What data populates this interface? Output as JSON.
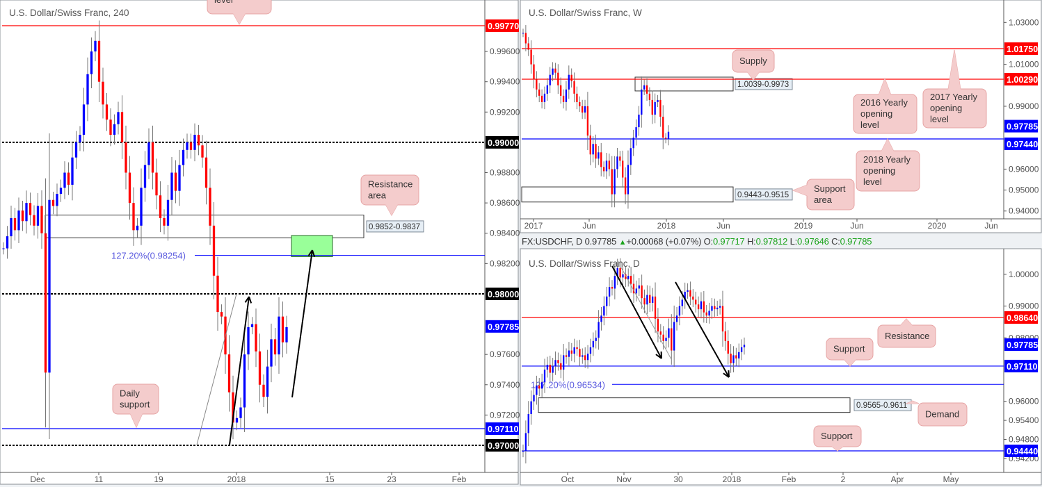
{
  "colors": {
    "up": "#0000ff",
    "down": "#ff0000",
    "resistance": "#ff0000",
    "support": "#0000ff",
    "round_number": "#000000",
    "fib": "#5b5bdf",
    "target_zone": "#99ff99",
    "callout_fill": "#f4cccc",
    "callout_border": "#e6a3a3"
  },
  "daily_header": {
    "symbol": "FX:USDCHF, D",
    "last": "0.97785",
    "arrow": "▲",
    "change": "+0.00068 (+0.07%)",
    "o_label": "O:",
    "o": "0.97717",
    "h_label": "H:",
    "h": "0.97812",
    "l_label": "L:",
    "l": "0.97646",
    "c_label": "C:",
    "c": "0.97785"
  },
  "chart_data": [
    {
      "id": "h4",
      "type": "candlestick",
      "title": "U.S. Dollar/Swiss Franc, 240",
      "closes": [
        0.983,
        0.9838,
        0.985,
        0.9842,
        0.9855,
        0.9848,
        0.986,
        0.9852,
        0.9845,
        0.9858,
        0.984,
        0.9748,
        0.9862,
        0.9858,
        0.9866,
        0.987,
        0.988,
        0.9872,
        0.989,
        0.99,
        0.9905,
        0.9925,
        0.9945,
        0.996,
        0.9967,
        0.994,
        0.9925,
        0.9915,
        0.9905,
        0.9912,
        0.992,
        0.99,
        0.988,
        0.986,
        0.9842,
        0.9845,
        0.987,
        0.9885,
        0.99,
        0.988,
        0.9865,
        0.985,
        0.9845,
        0.9862,
        0.988,
        0.9868,
        0.9885,
        0.9895,
        0.99,
        0.9895,
        0.9905,
        0.9898,
        0.989,
        0.987,
        0.9845,
        0.9812,
        0.9788,
        0.9785,
        0.976,
        0.9735,
        0.9715,
        0.9718,
        0.9725,
        0.976,
        0.9778,
        0.978,
        0.9762,
        0.974,
        0.9732,
        0.9752,
        0.977,
        0.976,
        0.9785,
        0.9768,
        0.9778
      ],
      "x_ticks": [
        "Dec",
        "11",
        "19",
        "2018",
        "15",
        "23",
        "Feb"
      ],
      "y_ticks": [
        "0.99600",
        "0.99400",
        "0.99200",
        "0.98800",
        "0.98600",
        "0.98400",
        "0.98200",
        "0.97600",
        "0.97400",
        "0.97200"
      ],
      "y_tick_values": [
        0.996,
        0.994,
        0.992,
        0.988,
        0.986,
        0.984,
        0.982,
        0.976,
        0.974,
        0.972
      ],
      "levels": [
        {
          "value": 0.9977,
          "label": "0.99770",
          "color": "#ff0000",
          "style": "solid"
        },
        {
          "value": 0.99,
          "label": "0.99000",
          "color": "#000000",
          "style": "dotted"
        },
        {
          "value": 0.98,
          "label": "0.98000",
          "color": "#000000",
          "style": "dotted"
        },
        {
          "value": 0.9711,
          "label": "0.97110",
          "color": "#0000ff",
          "style": "solid"
        },
        {
          "value": 0.97,
          "label": "0.97000",
          "color": "#000000",
          "style": "dotted"
        }
      ],
      "current_price": {
        "value": 0.97785,
        "label": "0.97785"
      },
      "fib": {
        "value": 0.98254,
        "label": "127.20%(0.98254)"
      },
      "zones": [
        {
          "high": 0.9852,
          "low": 0.9837,
          "label": "0.9852-0.9837"
        }
      ],
      "target_zone": {
        "high": 0.98385,
        "low": 0.98245
      },
      "callouts": [
        {
          "lines": [
            "level"
          ]
        },
        {
          "lines": [
            "Resistance",
            "area"
          ]
        },
        {
          "lines": [
            "Daily",
            "support"
          ]
        }
      ]
    },
    {
      "id": "weekly",
      "type": "candlestick",
      "title": "U.S. Dollar/Swiss Franc, W",
      "closes": [
        1.025,
        1.02,
        1.017,
        1.01,
        1.003,
        0.998,
        0.995,
        0.992,
        0.996,
        1.0,
        1.005,
        1.008,
        1.006,
        1.0,
        0.995,
        0.992,
        0.998,
        1.005,
        1.002,
        0.996,
        0.992,
        0.99,
        0.987,
        0.99,
        0.976,
        0.967,
        0.972,
        0.965,
        0.968,
        0.961,
        0.959,
        0.964,
        0.96,
        0.948,
        0.96,
        0.966,
        0.964,
        0.956,
        0.948,
        0.962,
        0.97,
        0.975,
        0.98,
        0.986,
        0.998,
        1.0,
        0.996,
        0.993,
        0.986,
        0.992,
        0.993,
        0.985,
        0.975,
        0.9745,
        0.9778
      ],
      "x_ticks": [
        "2017",
        "Jun",
        "2018",
        "Jun",
        "2019",
        "Jun",
        "2020",
        "Jun"
      ],
      "y_ticks": [
        "1.03000",
        "1.01000",
        "0.99000",
        "0.96000",
        "0.95000",
        "0.94000"
      ],
      "y_tick_values": [
        1.03,
        1.01,
        0.99,
        0.96,
        0.95,
        0.94
      ],
      "levels": [
        {
          "value": 1.0175,
          "label": "1.01750",
          "color": "#ff0000",
          "style": "solid"
        },
        {
          "value": 1.0029,
          "label": "1.00290",
          "color": "#ff0000",
          "style": "solid"
        },
        {
          "value": 0.9744,
          "label": "0.97440",
          "color": "#0000ff",
          "style": "solid"
        }
      ],
      "current_price": {
        "value": 0.97785,
        "label": "0.97785"
      },
      "zones": [
        {
          "high": 1.0039,
          "low": 0.9973,
          "label": "1.0039-0.9973"
        },
        {
          "high": 0.9515,
          "low": 0.9443,
          "label": "0.9443-0.9515"
        }
      ],
      "callouts": [
        {
          "lines": [
            "Supply"
          ]
        },
        {
          "lines": [
            "2016 Yearly",
            "opening",
            "level"
          ]
        },
        {
          "lines": [
            "2017 Yearly",
            "opening",
            "level"
          ]
        },
        {
          "lines": [
            "2018 Yearly",
            "opening",
            "level"
          ]
        },
        {
          "lines": [
            "Support",
            "area"
          ]
        }
      ]
    },
    {
      "id": "daily",
      "type": "candlestick",
      "title": "U.S. Dollar/Swiss Franc, D",
      "closes": [
        0.9444,
        0.95,
        0.956,
        0.96,
        0.962,
        0.965,
        0.964,
        0.966,
        0.97,
        0.9715,
        0.969,
        0.971,
        0.973,
        0.972,
        0.97,
        0.9745,
        0.974,
        0.976,
        0.975,
        0.977,
        0.9765,
        0.974,
        0.9745,
        0.973,
        0.975,
        0.977,
        0.979,
        0.98,
        0.985,
        0.987,
        0.99,
        0.993,
        0.996,
        0.9955,
        0.9995,
        1.002,
        0.999,
        1.0,
        0.9985,
        0.9995,
        0.997,
        0.994,
        0.9955,
        0.9965,
        0.9925,
        0.9905,
        0.9935,
        0.991,
        0.993,
        0.986,
        0.982,
        0.981,
        0.979,
        0.98,
        0.983,
        0.976,
        0.985,
        0.987,
        0.99,
        0.992,
        0.9945,
        0.995,
        0.993,
        0.992,
        0.9905,
        0.989,
        0.9915,
        0.988,
        0.987,
        0.9885,
        0.99,
        0.989,
        0.9895,
        0.99,
        0.982,
        0.979,
        0.975,
        0.972,
        0.9745,
        0.9735,
        0.9755,
        0.977,
        0.9778
      ],
      "x_ticks": [
        "Oct",
        "Nov",
        "30",
        "2018",
        "Feb",
        "2",
        "Apr",
        "May"
      ],
      "y_ticks": [
        "1.00000",
        "0.99000",
        "0.98000",
        "0.96000",
        "0.95400",
        "0.94800",
        "0.94200"
      ],
      "y_tick_values": [
        1.0,
        0.99,
        0.98,
        0.96,
        0.954,
        0.948,
        0.942
      ],
      "levels": [
        {
          "value": 0.9864,
          "label": "0.98640",
          "color": "#ff0000",
          "style": "solid"
        },
        {
          "value": 0.9711,
          "label": "0.97110",
          "color": "#0000ff",
          "style": "solid"
        },
        {
          "value": 0.9444,
          "label": "0.94440",
          "color": "#0000ff",
          "style": "solid"
        }
      ],
      "current_price": {
        "value": 0.97785,
        "label": "0.97785"
      },
      "fib": {
        "value": 0.96534,
        "label": "127.20%(0.96534)"
      },
      "zones": [
        {
          "high": 0.9611,
          "low": 0.9565,
          "label": "0.9565-0.9611"
        }
      ],
      "callouts": [
        {
          "lines": [
            "Support"
          ]
        },
        {
          "lines": [
            "Resistance"
          ]
        },
        {
          "lines": [
            "Demand"
          ]
        },
        {
          "lines": [
            "Support"
          ]
        }
      ]
    }
  ]
}
